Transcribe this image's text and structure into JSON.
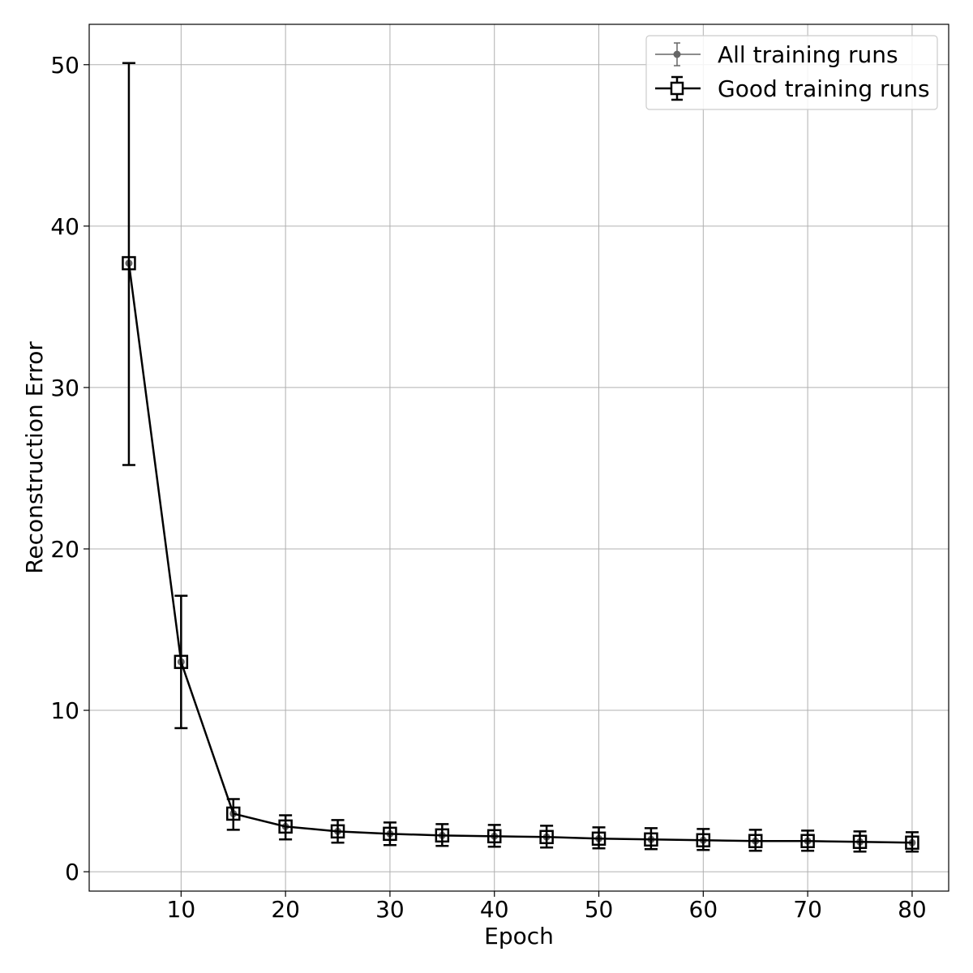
{
  "chart_data": {
    "type": "line",
    "title": "",
    "xlabel": "Epoch",
    "ylabel": "Reconstruction Error",
    "xlim": [
      1.2,
      83.5
    ],
    "ylim": [
      -1.2,
      52.5
    ],
    "xticks": [
      10,
      20,
      30,
      40,
      50,
      60,
      70,
      80
    ],
    "yticks": [
      0,
      10,
      20,
      30,
      40,
      50
    ],
    "grid": true,
    "legend_position": "top-right",
    "x": [
      5,
      10,
      15,
      20,
      25,
      30,
      35,
      40,
      45,
      50,
      55,
      60,
      65,
      70,
      75,
      80
    ],
    "series": [
      {
        "name": "All training runs",
        "style": "errorbar-dot",
        "color": "#666666",
        "values": [
          37.7,
          13.0,
          3.6,
          2.8,
          2.5,
          2.35,
          2.25,
          2.2,
          2.15,
          2.05,
          2.0,
          1.95,
          1.9,
          1.9,
          1.85,
          1.8
        ],
        "error_low": [
          25.2,
          8.9,
          2.6,
          2.0,
          1.8,
          1.65,
          1.6,
          1.55,
          1.5,
          1.45,
          1.4,
          1.35,
          1.3,
          1.3,
          1.25,
          1.25
        ],
        "error_high": [
          50.1,
          17.1,
          4.5,
          3.5,
          3.2,
          3.05,
          2.95,
          2.9,
          2.85,
          2.75,
          2.7,
          2.65,
          2.6,
          2.55,
          2.5,
          2.45
        ]
      },
      {
        "name": "Good training runs",
        "style": "errorbar-square",
        "color": "#000000",
        "values": [
          37.7,
          13.0,
          3.6,
          2.8,
          2.5,
          2.35,
          2.25,
          2.2,
          2.15,
          2.05,
          2.0,
          1.95,
          1.9,
          1.9,
          1.85,
          1.8
        ],
        "error_low": [
          25.2,
          8.9,
          2.6,
          2.0,
          1.8,
          1.65,
          1.6,
          1.55,
          1.5,
          1.45,
          1.4,
          1.35,
          1.3,
          1.3,
          1.25,
          1.25
        ],
        "error_high": [
          50.1,
          17.1,
          4.5,
          3.5,
          3.2,
          3.05,
          2.95,
          2.9,
          2.85,
          2.75,
          2.7,
          2.65,
          2.6,
          2.55,
          2.5,
          2.45
        ]
      }
    ]
  }
}
